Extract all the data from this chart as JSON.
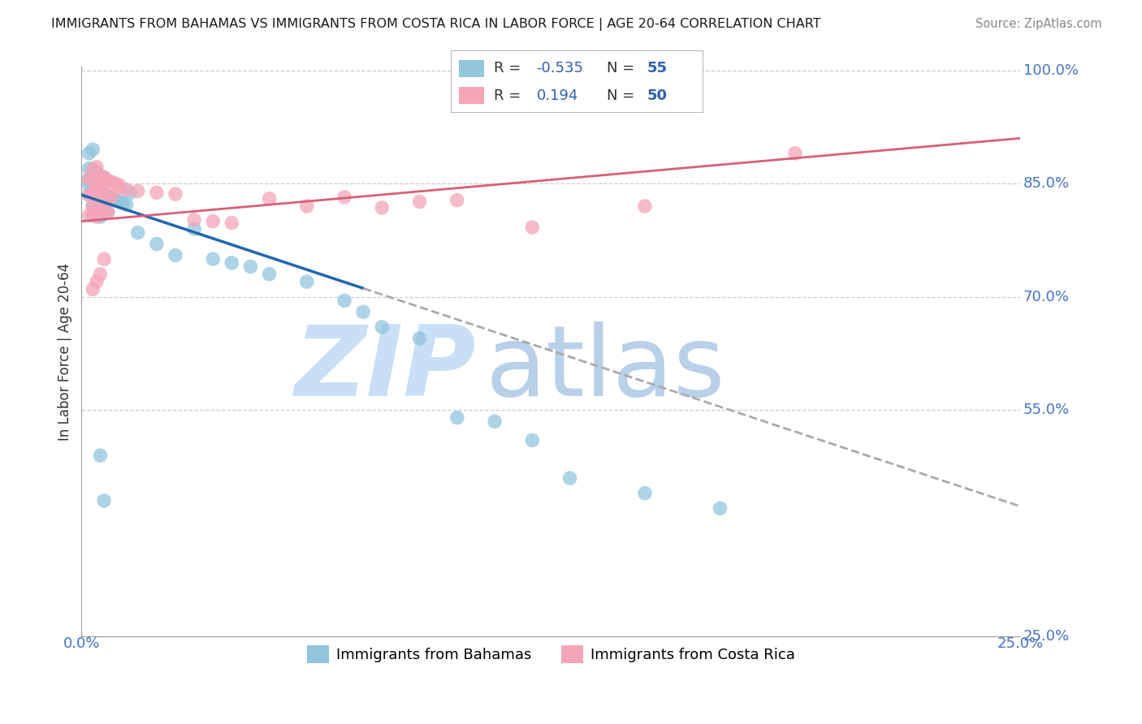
{
  "title": "IMMIGRANTS FROM BAHAMAS VS IMMIGRANTS FROM COSTA RICA IN LABOR FORCE | AGE 20-64 CORRELATION CHART",
  "source": "Source: ZipAtlas.com",
  "ylabel": "In Labor Force | Age 20-64",
  "xlim": [
    0.0,
    0.25
  ],
  "ylim": [
    0.25,
    1.005
  ],
  "blue_color": "#92c5de",
  "pink_color": "#f4a5b8",
  "blue_line_color": "#2166ac",
  "pink_line_color": "#d6607a",
  "blue_R": -0.535,
  "blue_N": 55,
  "pink_R": 0.194,
  "pink_N": 50,
  "legend_label_blue": "Immigrants from Bahamas",
  "legend_label_pink": "Immigrants from Costa Rica",
  "watermark_zip": "ZIP",
  "watermark_atlas": "atlas",
  "watermark_color_zip": "#c8dff5",
  "watermark_color_atlas": "#b8d0e8",
  "blue_line_y0": 0.835,
  "blue_line_slope": -1.65,
  "blue_line_solid_end": 0.075,
  "blue_line_dashed_end": 0.25,
  "pink_line_y0": 0.8,
  "pink_line_slope": 0.44,
  "pink_line_end": 0.25,
  "right_yticks": [
    1.0,
    0.85,
    0.7,
    0.55,
    0.25
  ],
  "right_ytick_labels": [
    "100.0%",
    "85.0%",
    "70.0%",
    "55.0%",
    "25.0%"
  ],
  "grid_yticks": [
    1.0,
    0.85,
    0.7,
    0.55
  ],
  "bottom_xtick_left": "0.0%",
  "bottom_xtick_right": "25.0%",
  "blue_x": [
    0.002,
    0.003,
    0.004,
    0.005,
    0.006,
    0.007,
    0.008,
    0.009,
    0.01,
    0.011,
    0.012,
    0.013,
    0.003,
    0.004,
    0.005,
    0.006,
    0.007,
    0.003,
    0.004,
    0.005,
    0.002,
    0.003,
    0.004,
    0.005,
    0.006,
    0.002,
    0.003,
    0.004,
    0.005,
    0.002,
    0.003,
    0.004,
    0.002,
    0.003,
    0.015,
    0.02,
    0.025,
    0.03,
    0.035,
    0.04,
    0.045,
    0.05,
    0.06,
    0.07,
    0.075,
    0.08,
    0.09,
    0.1,
    0.11,
    0.12,
    0.005,
    0.006,
    0.13,
    0.15,
    0.17
  ],
  "blue_y": [
    0.835,
    0.838,
    0.84,
    0.833,
    0.836,
    0.832,
    0.83,
    0.828,
    0.826,
    0.824,
    0.822,
    0.838,
    0.82,
    0.818,
    0.816,
    0.814,
    0.812,
    0.808,
    0.81,
    0.806,
    0.848,
    0.846,
    0.844,
    0.86,
    0.858,
    0.856,
    0.854,
    0.852,
    0.85,
    0.87,
    0.868,
    0.866,
    0.89,
    0.895,
    0.785,
    0.77,
    0.755,
    0.79,
    0.75,
    0.745,
    0.74,
    0.73,
    0.72,
    0.695,
    0.68,
    0.66,
    0.645,
    0.54,
    0.535,
    0.51,
    0.49,
    0.43,
    0.46,
    0.44,
    0.42
  ],
  "pink_x": [
    0.002,
    0.003,
    0.004,
    0.005,
    0.006,
    0.007,
    0.008,
    0.003,
    0.004,
    0.005,
    0.006,
    0.007,
    0.008,
    0.009,
    0.01,
    0.003,
    0.004,
    0.005,
    0.006,
    0.007,
    0.002,
    0.003,
    0.004,
    0.005,
    0.006,
    0.002,
    0.003,
    0.004,
    0.005,
    0.01,
    0.012,
    0.015,
    0.02,
    0.025,
    0.03,
    0.035,
    0.04,
    0.05,
    0.06,
    0.07,
    0.08,
    0.09,
    0.1,
    0.12,
    0.15,
    0.003,
    0.004,
    0.005,
    0.006,
    0.19
  ],
  "pink_y": [
    0.835,
    0.836,
    0.838,
    0.84,
    0.836,
    0.834,
    0.832,
    0.868,
    0.872,
    0.858,
    0.856,
    0.854,
    0.852,
    0.85,
    0.848,
    0.82,
    0.818,
    0.816,
    0.814,
    0.812,
    0.808,
    0.81,
    0.806,
    0.86,
    0.858,
    0.856,
    0.854,
    0.852,
    0.85,
    0.844,
    0.842,
    0.84,
    0.838,
    0.836,
    0.802,
    0.8,
    0.798,
    0.83,
    0.82,
    0.832,
    0.818,
    0.826,
    0.828,
    0.792,
    0.82,
    0.71,
    0.72,
    0.73,
    0.75,
    0.89
  ]
}
